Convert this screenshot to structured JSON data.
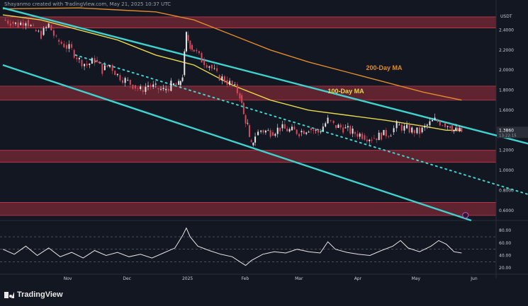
{
  "header": {
    "caption": "Shayanmo created with TradingView.com, May 21, 2025 10:37 UTC"
  },
  "footer": {
    "brand": "TradingView"
  },
  "colors": {
    "background": "#131722",
    "zone": "#7a2a35",
    "channel": "#3fd3cf",
    "ma100": "#e7d84a",
    "ma200": "#e08a2c",
    "candle_up": "#e6e6e6",
    "candle_down": "#d8485a",
    "rsi": "#e6e6e6",
    "grid": "#1e222d"
  },
  "chart_data": [
    {
      "type": "candlestick",
      "title": "",
      "currency": "USDT",
      "ylim": [
        0.5,
        2.6
      ],
      "yticks": [
        "2.4000",
        "2.2000",
        "2.0000",
        "1.8000",
        "1.6000",
        "1.4000",
        "1.2000",
        "1.0000",
        "0.8000",
        "0.6000"
      ],
      "yticks_values": [
        2.4,
        2.2,
        2.0,
        1.8,
        1.6,
        1.4,
        1.2,
        1.0,
        0.8,
        0.6
      ],
      "xticks": [
        "Nov",
        "Dec",
        "2025",
        "Feb",
        "Mar",
        "Apr",
        "May",
        "Jun"
      ],
      "x_range_days": [
        0,
        225
      ],
      "xticks_days": [
        34,
        65,
        96,
        127,
        155,
        186,
        216,
        247
      ],
      "price_label": "1.3860",
      "time_label": "13:22:15",
      "close_series": [
        [
          0,
          2.5
        ],
        [
          4,
          2.48
        ],
        [
          8,
          2.45
        ],
        [
          12,
          2.5
        ],
        [
          16,
          2.4
        ],
        [
          20,
          2.35
        ],
        [
          24,
          2.45
        ],
        [
          28,
          2.3
        ],
        [
          32,
          2.25
        ],
        [
          36,
          2.2
        ],
        [
          40,
          2.1
        ],
        [
          44,
          2.05
        ],
        [
          48,
          2.1
        ],
        [
          52,
          2.0
        ],
        [
          56,
          2.05
        ],
        [
          60,
          1.95
        ],
        [
          64,
          1.9
        ],
        [
          68,
          1.85
        ],
        [
          72,
          1.8
        ],
        [
          76,
          1.85
        ],
        [
          80,
          1.82
        ],
        [
          84,
          1.8
        ],
        [
          88,
          1.85
        ],
        [
          92,
          1.85
        ],
        [
          94,
          1.95
        ],
        [
          96,
          2.35
        ],
        [
          98,
          2.25
        ],
        [
          100,
          2.2
        ],
        [
          104,
          2.1
        ],
        [
          108,
          2.05
        ],
        [
          112,
          1.95
        ],
        [
          116,
          1.9
        ],
        [
          120,
          1.85
        ],
        [
          124,
          1.75
        ],
        [
          126,
          1.55
        ],
        [
          128,
          1.45
        ],
        [
          129,
          1.3
        ],
        [
          130,
          1.25
        ],
        [
          132,
          1.35
        ],
        [
          135,
          1.4
        ],
        [
          140,
          1.38
        ],
        [
          145,
          1.42
        ],
        [
          150,
          1.4
        ],
        [
          155,
          1.38
        ],
        [
          160,
          1.42
        ],
        [
          165,
          1.38
        ],
        [
          170,
          1.5
        ],
        [
          173,
          1.45
        ],
        [
          178,
          1.42
        ],
        [
          183,
          1.38
        ],
        [
          188,
          1.35
        ],
        [
          193,
          1.32
        ],
        [
          198,
          1.35
        ],
        [
          203,
          1.38
        ],
        [
          206,
          1.45
        ],
        [
          210,
          1.42
        ],
        [
          214,
          1.4
        ],
        [
          218,
          1.38
        ],
        [
          222,
          1.45
        ],
        [
          226,
          1.5
        ],
        [
          230,
          1.47
        ],
        [
          234,
          1.45
        ],
        [
          236,
          1.4
        ],
        [
          238,
          1.39
        ],
        [
          240,
          1.386
        ]
      ],
      "ma100": [
        [
          0,
          2.55
        ],
        [
          20,
          2.5
        ],
        [
          40,
          2.4
        ],
        [
          60,
          2.3
        ],
        [
          80,
          2.15
        ],
        [
          100,
          2.05
        ],
        [
          120,
          1.85
        ],
        [
          140,
          1.7
        ],
        [
          160,
          1.6
        ],
        [
          180,
          1.55
        ],
        [
          200,
          1.5
        ],
        [
          220,
          1.44
        ],
        [
          232,
          1.4
        ],
        [
          240,
          1.4
        ]
      ],
      "ma200": [
        [
          0,
          2.61
        ],
        [
          40,
          2.62
        ],
        [
          60,
          2.6
        ],
        [
          80,
          2.58
        ],
        [
          100,
          2.5
        ],
        [
          120,
          2.35
        ],
        [
          140,
          2.2
        ],
        [
          160,
          2.08
        ],
        [
          180,
          1.98
        ],
        [
          200,
          1.88
        ],
        [
          220,
          1.78
        ],
        [
          240,
          1.7
        ]
      ],
      "zones": [
        [
          2.42,
          2.53
        ],
        [
          1.7,
          1.84
        ],
        [
          1.08,
          1.2
        ],
        [
          0.55,
          0.68
        ]
      ],
      "channel_upper": [
        [
          0,
          2.62
        ],
        [
          280,
          1.24
        ]
      ],
      "channel_lower": [
        [
          0,
          2.05
        ],
        [
          245,
          0.5
        ]
      ],
      "trend_dotted": [
        [
          38,
          2.15
        ],
        [
          280,
          0.73
        ]
      ],
      "annotations": [
        {
          "text": "200-Day MA",
          "at_day": 190,
          "at_price": 2.0,
          "color": "#e08a2c"
        },
        {
          "text": "100-Day MA",
          "at_day": 170,
          "at_price": 1.77,
          "color": "#e7d84a"
        }
      ]
    },
    {
      "type": "line",
      "title": "",
      "ylim": [
        10,
        95
      ],
      "yticks": [
        "80.00",
        "60.00",
        "40.00",
        "20.00"
      ],
      "yticks_values": [
        80,
        60,
        40,
        20
      ],
      "levels": [
        70,
        50,
        30
      ],
      "series": [
        {
          "values": [
            [
              0,
              50
            ],
            [
              6,
              42
            ],
            [
              12,
              55
            ],
            [
              18,
              40
            ],
            [
              24,
              52
            ],
            [
              30,
              38
            ],
            [
              36,
              45
            ],
            [
              42,
              36
            ],
            [
              48,
              48
            ],
            [
              54,
              40
            ],
            [
              60,
              45
            ],
            [
              66,
              38
            ],
            [
              72,
              42
            ],
            [
              78,
              36
            ],
            [
              84,
              44
            ],
            [
              90,
              52
            ],
            [
              94,
              72
            ],
            [
              96,
              84
            ],
            [
              98,
              70
            ],
            [
              102,
              55
            ],
            [
              108,
              48
            ],
            [
              114,
              42
            ],
            [
              120,
              38
            ],
            [
              124,
              30
            ],
            [
              127,
              24
            ],
            [
              130,
              32
            ],
            [
              136,
              42
            ],
            [
              142,
              46
            ],
            [
              148,
              44
            ],
            [
              154,
              50
            ],
            [
              160,
              46
            ],
            [
              166,
              44
            ],
            [
              170,
              62
            ],
            [
              174,
              50
            ],
            [
              180,
              45
            ],
            [
              186,
              42
            ],
            [
              192,
              40
            ],
            [
              198,
              48
            ],
            [
              204,
              55
            ],
            [
              208,
              64
            ],
            [
              212,
              52
            ],
            [
              218,
              46
            ],
            [
              224,
              55
            ],
            [
              228,
              64
            ],
            [
              232,
              58
            ],
            [
              236,
              46
            ],
            [
              240,
              44
            ]
          ]
        }
      ]
    }
  ]
}
